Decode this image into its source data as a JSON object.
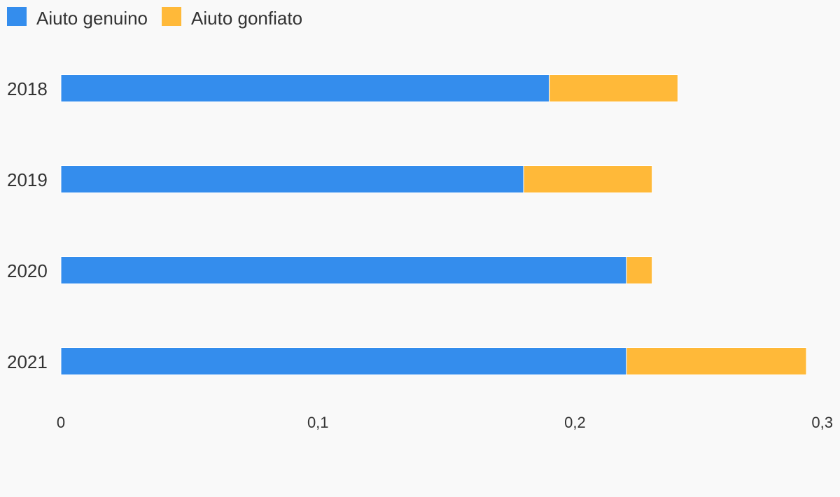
{
  "chart_data": {
    "type": "bar",
    "orientation": "horizontal",
    "stacked": true,
    "categories": [
      "2018",
      "2019",
      "2020",
      "2021"
    ],
    "series": [
      {
        "name": "Aiuto genuino",
        "values": [
          0.19,
          0.18,
          0.22,
          0.22
        ],
        "color": "#348ded"
      },
      {
        "name": "Aiuto gonfiato",
        "values": [
          0.05,
          0.05,
          0.01,
          0.07
        ],
        "color": "#ffb939"
      }
    ],
    "x_ticks": [
      "0",
      "0,1",
      "0,2",
      "0,3"
    ],
    "x_tick_values": [
      0,
      0.1,
      0.2,
      0.3
    ],
    "xlim": [
      0,
      0.29
    ],
    "grid": false,
    "legend_position": "top-left",
    "title": "",
    "xlabel": "",
    "ylabel": ""
  }
}
